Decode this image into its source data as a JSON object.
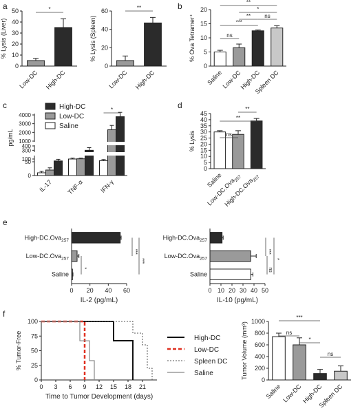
{
  "figure": {
    "title": "Multi-panel figure: DC vaccination cytotoxicity and tumor protection"
  },
  "chart_data": [
    {
      "panel": "a",
      "type": "bar",
      "ylabel": "% Lysis (Liver)",
      "categories": [
        "Low-DC",
        "High-DC"
      ],
      "values": [
        5,
        35
      ],
      "errors": [
        2,
        8
      ],
      "colors": [
        "#9a9a9a",
        "#2b2b2b"
      ],
      "ylim": [
        0,
        50
      ],
      "yticks": [
        0,
        10,
        20,
        30,
        40,
        50
      ],
      "sig": [
        {
          "a": 0,
          "b": 1,
          "label": "*"
        }
      ]
    },
    {
      "panel": "a2",
      "type": "bar",
      "ylabel": "% Lysis (Spleen)",
      "categories": [
        "Low-DC",
        "High-DC"
      ],
      "values": [
        6,
        47
      ],
      "errors": [
        5,
        6
      ],
      "colors": [
        "#9a9a9a",
        "#2b2b2b"
      ],
      "ylim": [
        0,
        60
      ],
      "yticks": [
        0,
        20,
        40,
        60
      ],
      "sig": [
        {
          "a": 0,
          "b": 1,
          "label": "**"
        }
      ]
    },
    {
      "panel": "b",
      "type": "bar",
      "ylabel": "% Ova Tetramer⁺",
      "categories": [
        "Saline",
        "Low-DC",
        "High-DC",
        "Spleen DC"
      ],
      "values": [
        5,
        6.5,
        12.5,
        13.5
      ],
      "errors": [
        0.6,
        1.3,
        0.3,
        0.8
      ],
      "colors": [
        "#ffffff",
        "#9a9a9a",
        "#2b2b2b",
        "#c8c8c8"
      ],
      "ylim": [
        0,
        20
      ],
      "yticks": [
        0,
        5,
        10,
        15,
        20
      ],
      "sig": [
        {
          "a": 0,
          "b": 3,
          "label": "**"
        },
        {
          "a": 1,
          "b": 3,
          "label": "*"
        },
        {
          "a": 1,
          "b": 2,
          "label": "**"
        },
        {
          "a": 2,
          "b": 3,
          "label": "ns"
        },
        {
          "a": 0,
          "b": 2,
          "label": "***"
        },
        {
          "a": 0,
          "b": 1,
          "label": "ns"
        }
      ]
    },
    {
      "panel": "c",
      "type": "bar",
      "ylabel": "pg/mL",
      "categories": [
        "IL-17",
        "TNF-α",
        "IFN-γ"
      ],
      "series": [
        {
          "name": "Saline",
          "values": [
            10,
            100,
            70
          ],
          "errors": [
            5,
            20,
            20
          ],
          "color": "#ffffff"
        },
        {
          "name": "Low-DC",
          "values": [
            20,
            105,
            2300
          ],
          "errors": [
            8,
            15,
            500
          ],
          "color": "#9a9a9a"
        },
        {
          "name": "High-DC",
          "values": [
            65,
            300,
            3800
          ],
          "errors": [
            30,
            60,
            500
          ],
          "color": "#2b2b2b"
        }
      ],
      "ytick_labels": [
        "0",
        "50",
        "100",
        "300",
        "400",
        "1000",
        "2000",
        "3000",
        "4000"
      ],
      "legend": [
        "High-DC",
        "Low-DC",
        "Saline"
      ],
      "sig": [
        {
          "group": 2,
          "label": "*"
        }
      ]
    },
    {
      "panel": "d",
      "type": "bar",
      "ylabel": "% Lysis",
      "categories": [
        "Saline",
        "Low-DC.Ova257",
        "High-DC.Ova257"
      ],
      "values": [
        30,
        28,
        39
      ],
      "errors": [
        1,
        3,
        2
      ],
      "colors": [
        "#ffffff",
        "#9a9a9a",
        "#2b2b2b"
      ],
      "yticks": [
        0,
        5,
        10,
        15,
        20,
        25,
        30,
        35,
        40,
        45
      ],
      "sig": [
        {
          "a": 1,
          "b": 2,
          "label": "**"
        },
        {
          "a": 0,
          "b": 2,
          "label": "**"
        },
        {
          "a": 0,
          "b": 1,
          "label": "ns"
        }
      ]
    },
    {
      "panel": "e",
      "type": "bar",
      "orientation": "horizontal",
      "xlabel": "IL-2 (pg/mL)",
      "categories": [
        "High-DC.Ova257",
        "Low-DC.Ova257",
        "Saline"
      ],
      "values": [
        53,
        6,
        1
      ],
      "errors": [
        1,
        2,
        0.5
      ],
      "colors": [
        "#2b2b2b",
        "#9a9a9a",
        "#ffffff"
      ],
      "xlim": [
        0,
        60
      ],
      "xticks": [
        0,
        20,
        40,
        60
      ],
      "sig_labels": [
        "***",
        "***",
        "*"
      ]
    },
    {
      "panel": "e2",
      "type": "bar",
      "orientation": "horizontal",
      "xlabel": "IL-10 (pg/mL)",
      "categories": [
        "High-DC.Ova257",
        "Low-DC.Ova257",
        "Saline"
      ],
      "values": [
        11,
        37,
        37
      ],
      "errors": [
        1,
        5,
        2
      ],
      "colors": [
        "#2b2b2b",
        "#9a9a9a",
        "#ffffff"
      ],
      "xlim": [
        0,
        50
      ],
      "xticks": [
        0,
        10,
        20,
        30,
        40,
        50
      ],
      "sig_labels": [
        "*",
        "***",
        "ns"
      ]
    },
    {
      "panel": "f",
      "type": "line",
      "step": true,
      "xlabel": "Time to Tumor Development (days)",
      "ylabel": "% Tumor-Free",
      "xticks": [
        0,
        3,
        6,
        9,
        12,
        15,
        18,
        21
      ],
      "yticks": [
        0,
        25,
        50,
        75,
        100
      ],
      "xlim": [
        0,
        24
      ],
      "ylim": [
        0,
        100
      ],
      "series": [
        {
          "name": "High-DC",
          "color": "#111111",
          "dash": "",
          "width": 2,
          "x": [
            0,
            15,
            15,
            19,
            19
          ],
          "y": [
            100,
            100,
            67,
            67,
            0
          ]
        },
        {
          "name": "Low-DC",
          "color": "#e03020",
          "dash": "5,3",
          "width": 2.5,
          "x": [
            0,
            9,
            9
          ],
          "y": [
            100,
            100,
            0
          ]
        },
        {
          "name": "Spleen DC",
          "color": "#555555",
          "dash": "2,2",
          "width": 1,
          "x": [
            0,
            19,
            19,
            21,
            21,
            22,
            22,
            23,
            23
          ],
          "y": [
            100,
            100,
            80,
            80,
            60,
            60,
            20,
            20,
            0
          ]
        },
        {
          "name": "Saline",
          "color": "#888888",
          "dash": "",
          "width": 1.2,
          "x": [
            0,
            8,
            8,
            10,
            10,
            11,
            11
          ],
          "y": [
            100,
            100,
            67,
            67,
            33,
            33,
            0
          ]
        }
      ]
    },
    {
      "panel": "f2",
      "type": "bar",
      "ylabel": "Tumor Volume (mm³)",
      "categories": [
        "Saline",
        "Low-DC",
        "High-DC",
        "Spleen DC"
      ],
      "values": [
        740,
        600,
        110,
        150
      ],
      "errors": [
        60,
        120,
        70,
        90
      ],
      "colors": [
        "#ffffff",
        "#9a9a9a",
        "#2b2b2b",
        "#c8c8c8"
      ],
      "ylim": [
        0,
        1000
      ],
      "yticks": [
        0,
        200,
        400,
        600,
        800,
        1000
      ],
      "sig": [
        {
          "a": 0,
          "b": 2,
          "label": "***"
        },
        {
          "a": 0,
          "b": 1,
          "label": "ns"
        },
        {
          "a": 1,
          "b": 2,
          "label": "*"
        },
        {
          "a": 2,
          "b": 3,
          "label": "ns"
        }
      ]
    }
  ],
  "labels": {
    "a": "a",
    "b": "b",
    "c": "c",
    "d": "d",
    "e": "e",
    "f": "f"
  }
}
